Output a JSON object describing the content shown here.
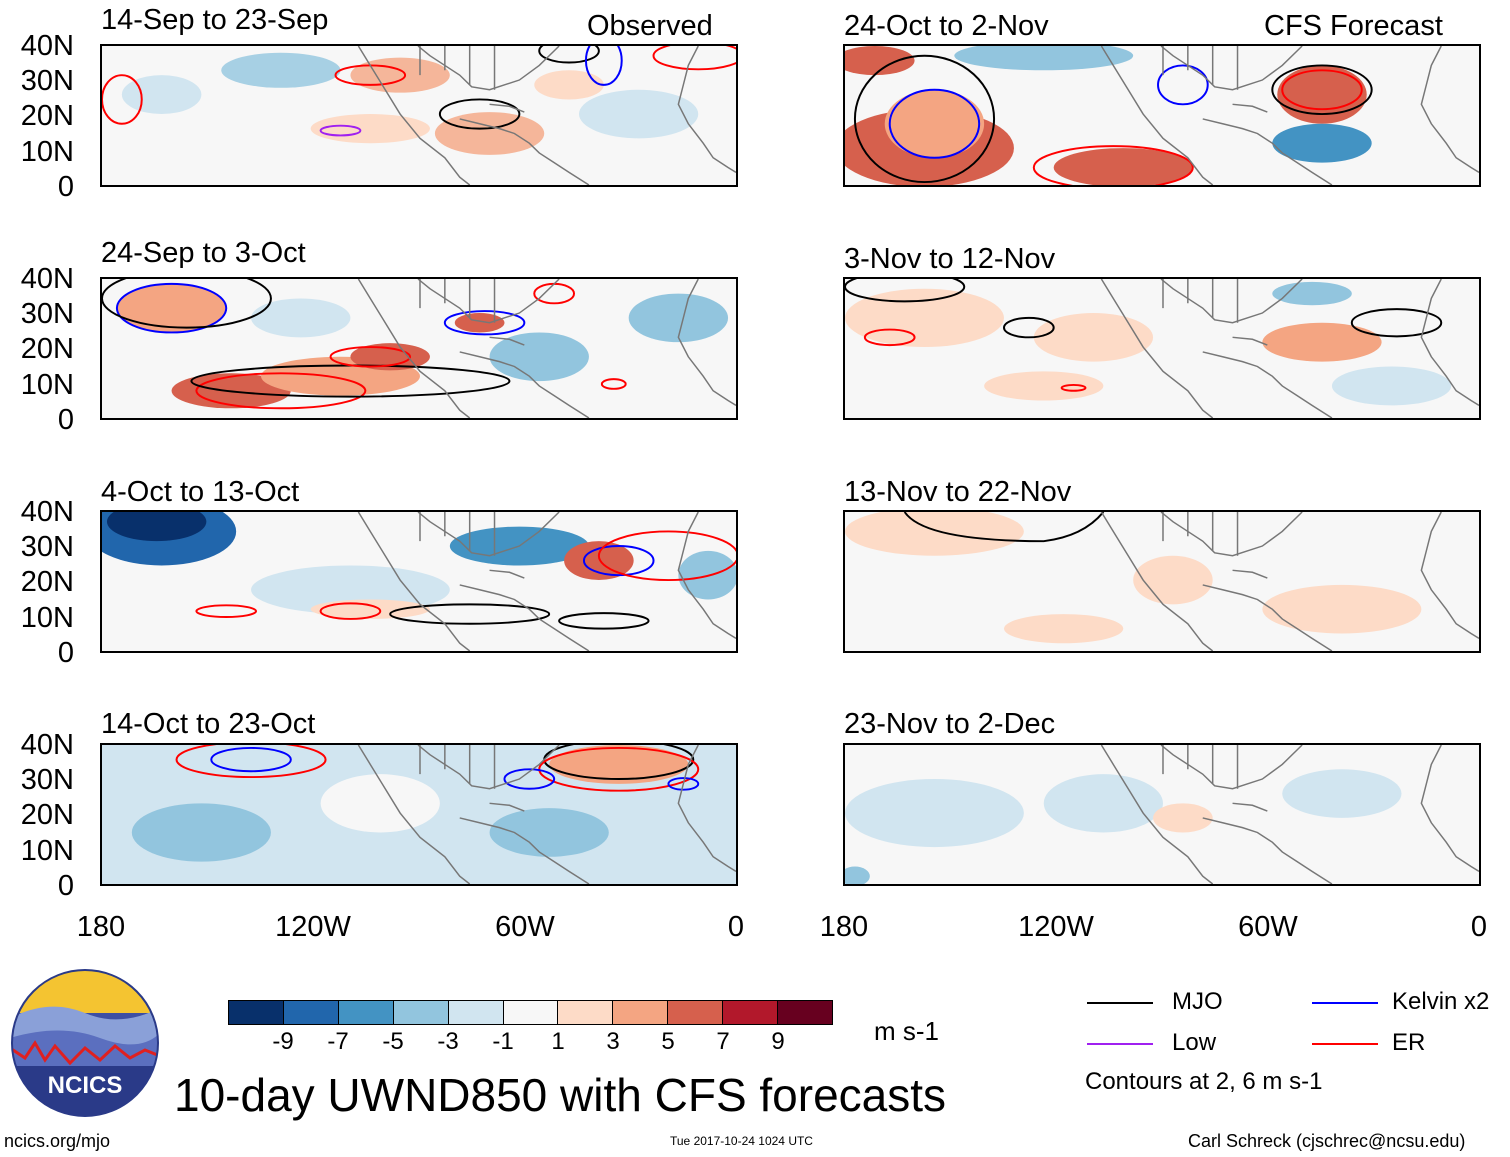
{
  "observed_label": "Observed",
  "forecast_label": "CFS Forecast",
  "left_panels": [
    {
      "title": "14-Sep to 23-Sep"
    },
    {
      "title": "24-Sep to 3-Oct"
    },
    {
      "title": "4-Oct to 13-Oct"
    },
    {
      "title": "14-Oct to 23-Oct"
    }
  ],
  "right_panels": [
    {
      "title": "24-Oct to 2-Nov"
    },
    {
      "title": "3-Nov to 12-Nov"
    },
    {
      "title": "13-Nov to 22-Nov"
    },
    {
      "title": "23-Nov to 2-Dec"
    }
  ],
  "lat_labels": [
    "40N",
    "30N",
    "20N",
    "10N",
    "0"
  ],
  "lon_labels": [
    "180",
    "120W",
    "60W",
    "0"
  ],
  "colorbar": {
    "colors": [
      "#08306b",
      "#2166ac",
      "#4393c3",
      "#92c5de",
      "#d1e5f0",
      "#f7f7f7",
      "#fddbc7",
      "#f4a582",
      "#d6604d",
      "#b2182b",
      "#67001f"
    ],
    "labels": [
      "-9",
      "-7",
      "-5",
      "-3",
      "-1",
      "1",
      "3",
      "5",
      "7",
      "9"
    ],
    "units": "m s-1"
  },
  "legend": {
    "mjo": {
      "label": "MJO",
      "color": "#000000"
    },
    "kelvin": {
      "label": "Kelvin x2",
      "color": "#0000ff"
    },
    "low": {
      "label": "Low",
      "color": "#a020f0"
    },
    "er": {
      "label": "ER",
      "color": "#ff0000"
    },
    "note": "Contours at 2, 6 m s-1"
  },
  "main_title": "10-day UWND850 with CFS forecasts",
  "logo_text": "NCICS",
  "footer": {
    "url": "ncics.org/mjo",
    "timestamp": "Tue 2017-10-24 1024 UTC",
    "author": "Carl Schreck (cjschrec@ncsu.edu)"
  }
}
